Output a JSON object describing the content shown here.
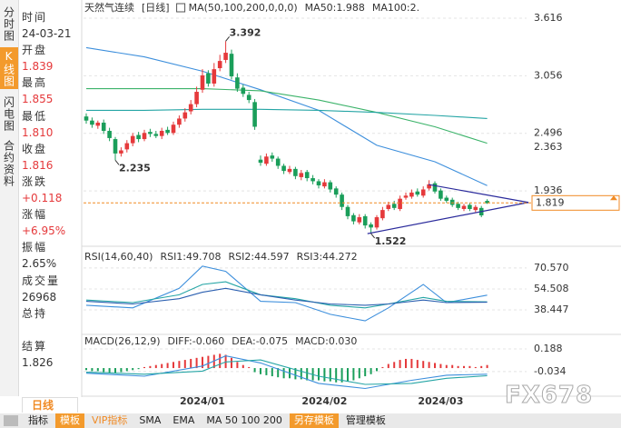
{
  "sidebar_tabs": [
    "分时图",
    "K线图",
    "闪电图",
    "合约资料"
  ],
  "info": [
    {
      "label": "时间",
      "value": "24-03-21"
    },
    {
      "label": "开盘",
      "value": "1.839"
    },
    {
      "label": "最高",
      "value": "1.855"
    },
    {
      "label": "最低",
      "value": "1.810"
    },
    {
      "label": "收盘",
      "value": "1.816"
    },
    {
      "label": "涨跌",
      "value": "+0.118"
    },
    {
      "label": "涨幅",
      "value": "+6.95%"
    },
    {
      "label": "振幅",
      "value": "2.65%"
    },
    {
      "label": "成交量",
      "value": "26968"
    },
    {
      "label": "总持"
    },
    {
      "label": "结算",
      "value": "1.826"
    }
  ],
  "period_tab": "日线",
  "toolbar": [
    "指标",
    "模板",
    "VIP指标",
    "SMA",
    "EMA",
    "MA 50 100 200",
    "另存模板",
    "管理模板"
  ],
  "watermark": "FX678",
  "chart_data": [
    {
      "type": "candlestick",
      "title": "天然气连续",
      "period": "[日线]",
      "indicator_label": "MA(50,100,200,0,0,0)",
      "categories": [
        null,
        null,
        null,
        null,
        null,
        null,
        null,
        null,
        null,
        null,
        null,
        null,
        null,
        null,
        null,
        null,
        null,
        null,
        null,
        null,
        "2024/01",
        null,
        null,
        null,
        null,
        null,
        null,
        null,
        null,
        null,
        null,
        null,
        null,
        null,
        null,
        null,
        null,
        null,
        null,
        null,
        null,
        "2024/02",
        null,
        null,
        null,
        null,
        null,
        null,
        null,
        null,
        null,
        null,
        null,
        null,
        null,
        null,
        null,
        null,
        null,
        null,
        null,
        "2024/03",
        null,
        null,
        null,
        null,
        null,
        null,
        null,
        null
      ],
      "open": [
        2.66,
        2.62,
        2.57,
        2.6,
        2.52,
        2.44,
        2.3,
        2.34,
        2.4,
        2.48,
        2.44,
        2.51,
        2.49,
        2.47,
        2.53,
        2.5,
        2.58,
        2.64,
        2.71,
        2.78,
        2.92,
        3.08,
        2.98,
        3.13,
        3.21,
        3.27,
        3.04,
        2.94,
        2.87,
        2.8,
        2.24,
        2.2,
        2.28,
        2.25,
        2.18,
        2.12,
        2.15,
        2.07,
        2.12,
        2.06,
        2.03,
        1.98,
        2.02,
        1.96,
        1.9,
        1.78,
        1.7,
        1.63,
        1.69,
        1.61,
        1.58,
        1.67,
        1.76,
        1.81,
        1.76,
        1.87,
        1.88,
        1.93,
        1.89,
        1.96,
        2.01,
        1.94,
        1.87,
        1.85,
        1.81,
        1.76,
        1.8,
        1.75,
        1.77,
        1.839
      ],
      "high": [
        2.69,
        2.65,
        2.62,
        2.63,
        2.55,
        2.46,
        2.36,
        2.43,
        2.5,
        2.51,
        2.53,
        2.54,
        2.52,
        2.55,
        2.56,
        2.61,
        2.67,
        2.74,
        2.82,
        2.95,
        3.12,
        3.11,
        3.18,
        3.26,
        3.392,
        3.31,
        3.08,
        2.97,
        2.9,
        2.83,
        2.28,
        2.3,
        2.31,
        2.27,
        2.2,
        2.18,
        2.17,
        2.14,
        2.14,
        2.09,
        2.05,
        2.05,
        2.04,
        1.98,
        1.92,
        1.8,
        1.72,
        1.71,
        1.71,
        1.63,
        1.7,
        1.78,
        1.83,
        1.84,
        1.89,
        1.92,
        1.95,
        1.96,
        1.98,
        2.04,
        2.03,
        1.96,
        1.89,
        1.87,
        1.83,
        1.81,
        1.82,
        1.8,
        1.79,
        1.855
      ],
      "low": [
        2.59,
        2.55,
        2.54,
        2.49,
        2.42,
        2.235,
        2.27,
        2.31,
        2.37,
        2.41,
        2.42,
        2.46,
        2.45,
        2.44,
        2.48,
        2.48,
        2.55,
        2.61,
        2.68,
        2.75,
        2.89,
        2.95,
        2.95,
        3.1,
        3.18,
        3.02,
        2.9,
        2.85,
        2.79,
        2.53,
        2.18,
        2.18,
        2.22,
        2.15,
        2.1,
        2.1,
        2.05,
        2.04,
        2.03,
        2.0,
        1.96,
        1.96,
        1.92,
        1.87,
        1.75,
        1.66,
        1.61,
        1.61,
        1.57,
        1.522,
        1.56,
        1.65,
        1.74,
        1.75,
        1.74,
        1.85,
        1.86,
        1.88,
        1.87,
        1.94,
        1.91,
        1.84,
        1.82,
        1.78,
        1.75,
        1.74,
        1.74,
        1.73,
        1.68,
        1.81
      ],
      "close": [
        2.62,
        2.58,
        2.6,
        2.52,
        2.45,
        2.3,
        2.33,
        2.4,
        2.47,
        2.44,
        2.5,
        2.49,
        2.47,
        2.52,
        2.5,
        2.58,
        2.64,
        2.7,
        2.78,
        2.9,
        3.06,
        2.98,
        3.12,
        3.2,
        3.28,
        3.05,
        2.93,
        2.88,
        2.82,
        2.56,
        2.21,
        2.27,
        2.25,
        2.18,
        2.13,
        2.15,
        2.08,
        2.11,
        2.06,
        2.03,
        1.99,
        2.02,
        1.95,
        1.9,
        1.78,
        1.69,
        1.64,
        1.68,
        1.6,
        1.58,
        1.68,
        1.75,
        1.8,
        1.77,
        1.86,
        1.89,
        1.92,
        1.9,
        1.95,
        2.0,
        1.93,
        1.86,
        1.84,
        1.8,
        1.77,
        1.79,
        1.76,
        1.78,
        1.698,
        1.816
      ],
      "up_color": "#e5393b",
      "down_color": "#1a9e5a",
      "ylim": [
        1.477,
        3.687
      ],
      "yticks": [
        3.616,
        3.056,
        2.496,
        1.936
      ],
      "grid": true,
      "series": [
        {
          "name": "MA50:1.988",
          "color": "#3d8fdc",
          "x": [
            0,
            10,
            20,
            30,
            40,
            50,
            60,
            69
          ],
          "values": [
            3.33,
            3.24,
            3.1,
            2.92,
            2.72,
            2.38,
            2.22,
            1.988
          ]
        },
        {
          "name": "MA100:2.",
          "color": "#3cb36a",
          "x": [
            0,
            10,
            20,
            30,
            40,
            50,
            60,
            69
          ],
          "values": [
            2.93,
            2.93,
            2.93,
            2.91,
            2.82,
            2.7,
            2.56,
            2.4
          ]
        },
        {
          "color": "#25a5a5",
          "x": [
            0,
            10,
            20,
            30,
            40,
            50,
            60,
            69
          ],
          "values": [
            2.72,
            2.72,
            2.73,
            2.73,
            2.72,
            2.7,
            2.67,
            2.64
          ]
        }
      ],
      "annotations": [
        {
          "x": 24,
          "value": 3.392,
          "side": "above"
        },
        {
          "x": 5,
          "value": 2.235,
          "side": "below"
        },
        {
          "x": 49,
          "value": 1.522,
          "side": "below"
        }
      ],
      "trendlines": [
        {
          "x": [
            58.9,
            76.1
          ],
          "y": [
            1.998,
            1.824
          ],
          "color": "#2b2b9c"
        },
        {
          "x": [
            48.4,
            76.1
          ],
          "y": [
            1.52,
            1.824
          ],
          "color": "#2b2b9c"
        }
      ],
      "ma_marker": 2.363,
      "marker_color": "#f08a24",
      "last_price": 1.819
    },
    {
      "type": "line",
      "title": "RSI(14,60,40)",
      "ylim": [
        21.7,
        77.5
      ],
      "yticks": [
        {
          "value": 70.57,
          "label": "70.570"
        },
        54.508,
        38.447
      ],
      "grid": true,
      "series": [
        {
          "name": "RSI1:49.708",
          "color": "#3d8fdc",
          "x": [
            0,
            8,
            16,
            20,
            24,
            30,
            36,
            42,
            48,
            52,
            58,
            62,
            69
          ],
          "values": [
            42,
            40,
            55,
            72,
            68,
            45,
            44,
            35,
            30,
            40,
            58,
            44,
            49.708
          ]
        },
        {
          "name": "RSI2:44.597",
          "color": "#25a5a5",
          "x": [
            0,
            8,
            16,
            20,
            24,
            30,
            36,
            42,
            48,
            52,
            58,
            62,
            69
          ],
          "values": [
            46,
            44,
            50,
            58,
            60,
            50,
            47,
            42,
            40,
            43,
            48,
            45,
            44.597
          ]
        },
        {
          "name": "RSI3:44.272",
          "color": "#2b5fb0",
          "x": [
            0,
            8,
            16,
            20,
            24,
            30,
            36,
            42,
            48,
            52,
            58,
            62,
            69
          ],
          "values": [
            45,
            43,
            47,
            52,
            55,
            50,
            46,
            43,
            42,
            43,
            46,
            44,
            44.272
          ]
        }
      ]
    },
    {
      "type": "macd",
      "title": "MACD(26,12,9)",
      "ylim": [
        -0.24,
        0.25
      ],
      "yticks": [
        0.188,
        -0.034
      ],
      "grid": true,
      "series": [
        {
          "name": "DIFF:-0.060",
          "color": "#3d8fdc",
          "x": [
            0,
            10,
            20,
            24,
            30,
            40,
            48,
            56,
            62,
            69
          ],
          "values": [
            -0.05,
            -0.08,
            0.02,
            0.12,
            0.05,
            -0.15,
            -0.2,
            -0.12,
            -0.07,
            -0.06
          ]
        },
        {
          "name": "DEA:-0.075",
          "color": "#25a5a5",
          "x": [
            0,
            10,
            20,
            24,
            30,
            40,
            48,
            56,
            62,
            69
          ],
          "values": [
            -0.04,
            -0.06,
            -0.03,
            0.06,
            0.08,
            -0.08,
            -0.16,
            -0.15,
            -0.1,
            -0.075
          ]
        }
      ],
      "histogram": {
        "name": "MACD:0.030",
        "up_color": "#e5393b",
        "down_color": "#1a9e5a",
        "values": [
          -0.02,
          -0.03,
          -0.03,
          -0.04,
          -0.05,
          -0.05,
          -0.04,
          -0.03,
          -0.02,
          -0.01,
          0.01,
          0.02,
          0.03,
          0.04,
          0.05,
          0.06,
          0.07,
          0.08,
          0.09,
          0.1,
          0.11,
          0.12,
          0.13,
          0.14,
          0.13,
          0.1,
          0.06,
          0.03,
          0.01,
          -0.04,
          -0.06,
          -0.07,
          -0.08,
          -0.09,
          -0.1,
          -0.1,
          -0.11,
          -0.11,
          -0.12,
          -0.12,
          -0.12,
          -0.13,
          -0.13,
          -0.14,
          -0.14,
          -0.13,
          -0.12,
          -0.1,
          -0.08,
          -0.06,
          -0.03,
          0.01,
          0.04,
          0.06,
          0.08,
          0.09,
          0.09,
          0.08,
          0.07,
          0.06,
          0.05,
          0.04,
          0.03,
          0.03,
          0.02,
          0.02,
          0.02,
          0.01,
          0.02,
          0.03
        ]
      }
    }
  ]
}
